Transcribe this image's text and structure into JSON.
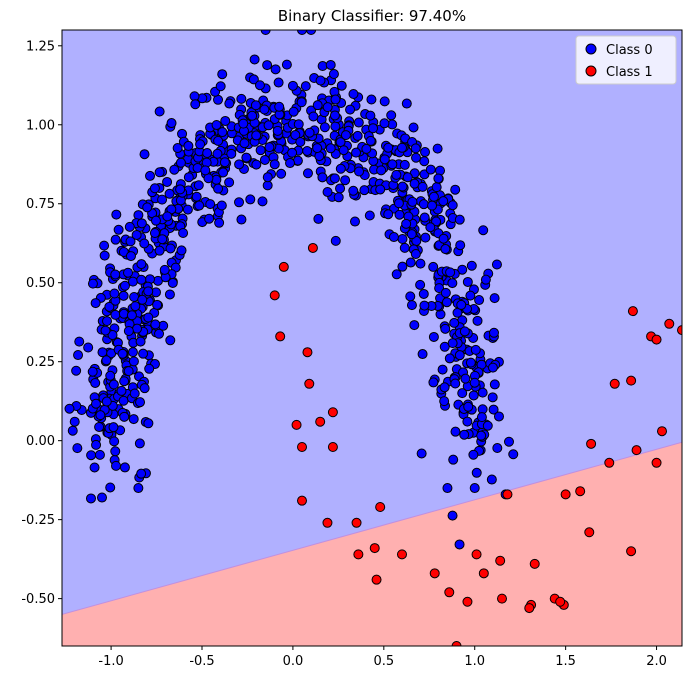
{
  "chart_data": {
    "type": "scatter",
    "title": "Binary Classifier:  97.40%",
    "xlabel": "",
    "ylabel": "",
    "xlim": [
      -1.27,
      2.14
    ],
    "ylim": [
      -0.65,
      1.3
    ],
    "x_ticks": [
      "-1.0",
      "-0.5",
      "0.0",
      "0.5",
      "1.0",
      "1.5",
      "2.0"
    ],
    "x_tick_values": [
      -1.0,
      -0.5,
      0.0,
      0.5,
      1.0,
      1.5,
      2.0
    ],
    "y_ticks": [
      "-0.50",
      "-0.25",
      "0.00",
      "0.25",
      "0.50",
      "0.75",
      "1.00",
      "1.25"
    ],
    "y_tick_values": [
      -0.5,
      -0.25,
      0.0,
      0.25,
      0.5,
      0.75,
      1.0,
      1.25
    ],
    "grid": false,
    "legend_position": "top-right",
    "decision_boundary": {
      "description": "linear boundary separating regions",
      "x": [
        -1.27,
        2.14
      ],
      "y": [
        -0.55,
        -0.005
      ],
      "region_above": "Class 0",
      "region_below": "Class 1",
      "color_class0_region": "#b0b0ff",
      "color_class1_region": "#ffb0b0"
    },
    "series": [
      {
        "name": "Class 0",
        "color": "#0000ff",
        "description": "upper moon shaped cluster of ~950 points",
        "moon_center": [
          0.0,
          0.0
        ],
        "moon_radius": 1.0,
        "noise": 0.1,
        "count": 950,
        "outliers": [
          [
            0.05,
            1.3
          ],
          [
            0.1,
            1.3
          ],
          [
            -0.15,
            1.3
          ],
          [
            1.0,
            -0.15
          ],
          [
            1.17,
            -0.17
          ],
          [
            0.85,
            -0.15
          ],
          [
            -1.2,
            0.06
          ],
          [
            -0.85,
            -0.15
          ],
          [
            -1.05,
            -0.18
          ],
          [
            0.8,
            0.83
          ]
        ]
      },
      {
        "name": "Class 1",
        "color": "#ff0000",
        "points": [
          [
            0.11,
            0.61
          ],
          [
            -0.05,
            0.55
          ],
          [
            -0.1,
            0.46
          ],
          [
            -0.07,
            0.33
          ],
          [
            0.08,
            0.28
          ],
          [
            0.09,
            0.18
          ],
          [
            0.02,
            0.05
          ],
          [
            0.05,
            -0.02
          ],
          [
            0.15,
            0.06
          ],
          [
            0.22,
            0.09
          ],
          [
            0.22,
            -0.02
          ],
          [
            0.05,
            -0.19
          ],
          [
            0.19,
            -0.26
          ],
          [
            0.35,
            -0.26
          ],
          [
            0.48,
            -0.21
          ],
          [
            0.36,
            -0.36
          ],
          [
            0.45,
            -0.34
          ],
          [
            0.6,
            -0.36
          ],
          [
            0.46,
            -0.44
          ],
          [
            0.78,
            -0.42
          ],
          [
            0.86,
            -0.48
          ],
          [
            0.96,
            -0.51
          ],
          [
            1.01,
            -0.36
          ],
          [
            1.05,
            -0.42
          ],
          [
            1.14,
            -0.38
          ],
          [
            1.15,
            -0.5
          ],
          [
            1.18,
            -0.17
          ],
          [
            1.31,
            -0.52
          ],
          [
            1.33,
            -0.39
          ],
          [
            1.3,
            -0.53
          ],
          [
            1.44,
            -0.5
          ],
          [
            1.49,
            -0.52
          ],
          [
            1.47,
            -0.51
          ],
          [
            1.5,
            -0.17
          ],
          [
            1.58,
            -0.16
          ],
          [
            1.63,
            -0.29
          ],
          [
            1.64,
            -0.01
          ],
          [
            1.74,
            -0.07
          ],
          [
            1.77,
            0.18
          ],
          [
            1.86,
            0.19
          ],
          [
            1.86,
            -0.35
          ],
          [
            1.87,
            0.41
          ],
          [
            1.89,
            -0.03
          ],
          [
            1.97,
            0.33
          ],
          [
            2.0,
            0.32
          ],
          [
            2.0,
            -0.07
          ],
          [
            2.03,
            0.03
          ],
          [
            2.07,
            0.37
          ],
          [
            2.14,
            0.35
          ],
          [
            0.9,
            -0.65
          ]
        ]
      }
    ]
  }
}
